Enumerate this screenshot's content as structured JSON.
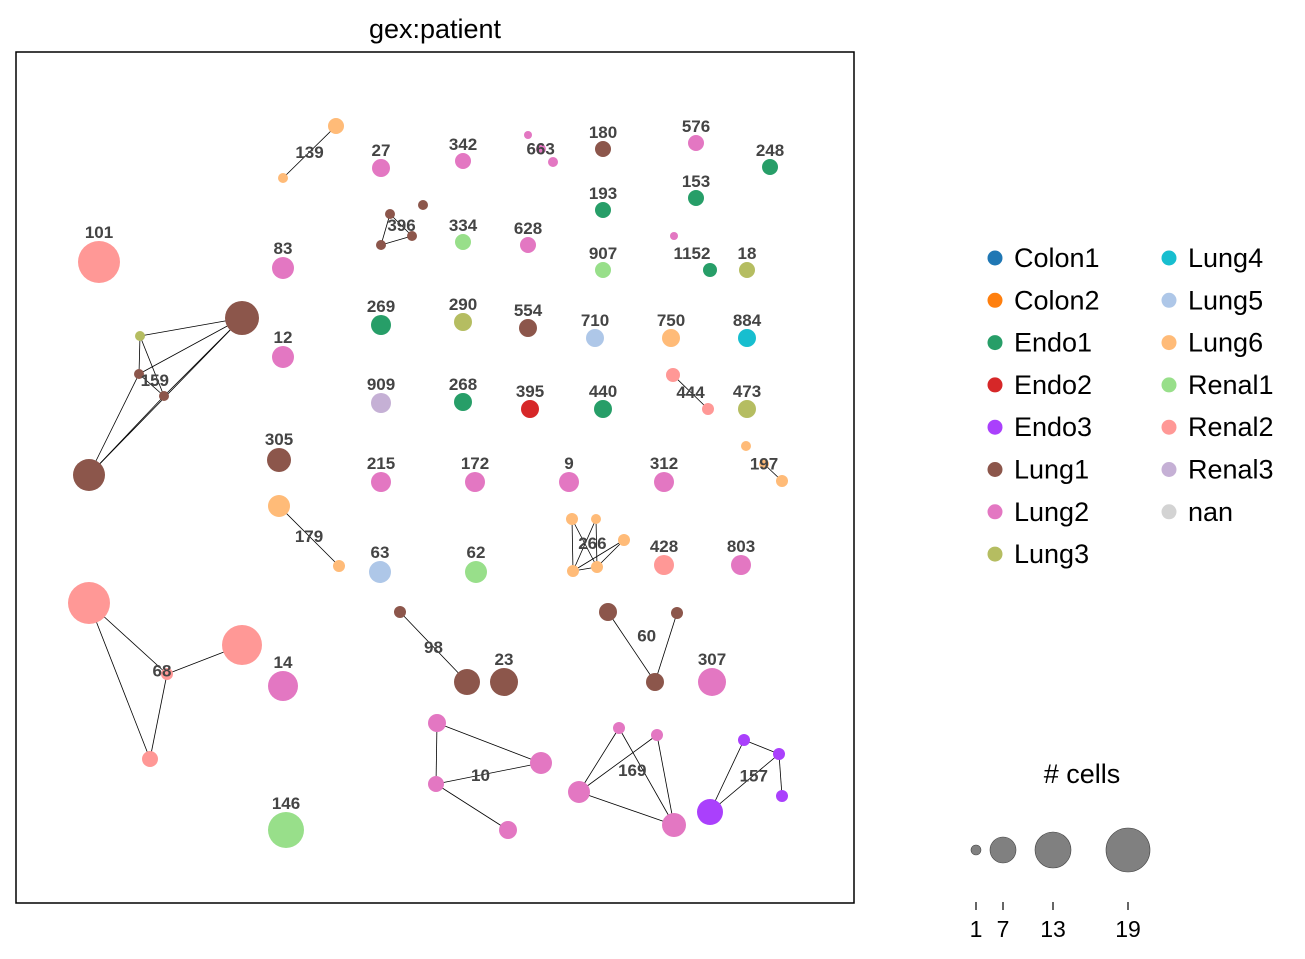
{
  "chart_data": {
    "type": "scatter",
    "title": "gex:patient",
    "categories": [
      "Colon1",
      "Colon2",
      "Endo1",
      "Endo2",
      "Endo3",
      "Lung1",
      "Lung2",
      "Lung3",
      "Lung4",
      "Lung5",
      "Lung6",
      "Renal1",
      "Renal2",
      "Renal3",
      "nan"
    ],
    "colors": {
      "Colon1": "#1f77b4",
      "Colon2": "#ff7f0e",
      "Endo1": "#279e68",
      "Endo2": "#d62728",
      "Endo3": "#aa40fc",
      "Lung1": "#8c564b",
      "Lung2": "#e377c2",
      "Lung3": "#b5bd61",
      "Lung4": "#17becf",
      "Lung5": "#aec7e8",
      "Lung6": "#ffbb78",
      "Renal1": "#98df8a",
      "Renal2": "#ff9896",
      "Renal3": "#c5b0d5",
      "nan": "#d3d3d3"
    },
    "size_legend": {
      "title": "# cells",
      "ticks": [
        1,
        7,
        13,
        19
      ]
    },
    "clonotypes": [
      {
        "label": "139",
        "nodes": [
          [
            336,
            126,
            8,
            "Lung6"
          ],
          [
            283,
            178,
            5,
            "Lung6"
          ]
        ],
        "edges": [
          [
            0,
            1
          ]
        ]
      },
      {
        "label": "27",
        "nodes": [
          [
            381,
            168,
            9,
            "Lung2"
          ]
        ],
        "edges": []
      },
      {
        "label": "342",
        "nodes": [
          [
            463,
            161,
            8,
            "Lung2"
          ]
        ],
        "edges": []
      },
      {
        "label": "663",
        "nodes": [
          [
            528,
            135,
            4,
            "Lung2"
          ],
          [
            541,
            149,
            5,
            "Lung2"
          ],
          [
            553,
            162,
            5,
            "Lung2"
          ]
        ],
        "edges": []
      },
      {
        "label": "180",
        "nodes": [
          [
            603,
            149,
            8,
            "Lung1"
          ]
        ],
        "edges": []
      },
      {
        "label": "576",
        "nodes": [
          [
            696,
            143,
            8,
            "Lung2"
          ]
        ],
        "edges": []
      },
      {
        "label": "248",
        "nodes": [
          [
            770,
            167,
            8,
            "Endo1"
          ]
        ],
        "edges": []
      },
      {
        "label": "193",
        "nodes": [
          [
            603,
            210,
            8,
            "Endo1"
          ]
        ],
        "edges": []
      },
      {
        "label": "153",
        "nodes": [
          [
            696,
            198,
            8,
            "Endo1"
          ]
        ],
        "edges": []
      },
      {
        "label": "396",
        "nodes": [
          [
            390,
            214,
            5,
            "Lung1"
          ],
          [
            423,
            205,
            5,
            "Lung1"
          ],
          [
            381,
            245,
            5,
            "Lung1"
          ],
          [
            412,
            236,
            5,
            "Lung1"
          ]
        ],
        "edges": [
          [
            0,
            2
          ],
          [
            0,
            3
          ],
          [
            2,
            3
          ]
        ]
      },
      {
        "label": "334",
        "nodes": [
          [
            463,
            242,
            8,
            "Renal1"
          ]
        ],
        "edges": []
      },
      {
        "label": "628",
        "nodes": [
          [
            528,
            245,
            8,
            "Lung2"
          ]
        ],
        "edges": []
      },
      {
        "label": "1152",
        "nodes": [
          [
            674,
            236,
            4,
            "Lung2"
          ],
          [
            710,
            270,
            7,
            "Endo1"
          ]
        ],
        "edges": []
      },
      {
        "label": "907",
        "nodes": [
          [
            603,
            270,
            8,
            "Renal1"
          ]
        ],
        "edges": []
      },
      {
        "label": "18",
        "nodes": [
          [
            747,
            270,
            8,
            "Lung3"
          ]
        ],
        "edges": []
      },
      {
        "label": "101",
        "nodes": [
          [
            99,
            262,
            21,
            "Renal2"
          ]
        ],
        "edges": []
      },
      {
        "label": "83",
        "nodes": [
          [
            283,
            268,
            11,
            "Lung2"
          ]
        ],
        "edges": []
      },
      {
        "label": "159",
        "nodes": [
          [
            242,
            318,
            17,
            "Lung1"
          ],
          [
            140,
            336,
            5,
            "Lung3"
          ],
          [
            139,
            374,
            5,
            "Lung1"
          ],
          [
            164,
            396,
            5,
            "Lung1"
          ],
          [
            89,
            475,
            16,
            "Lung1"
          ]
        ],
        "edges": [
          [
            1,
            0
          ],
          [
            1,
            2
          ],
          [
            1,
            3
          ],
          [
            2,
            3
          ],
          [
            0,
            2
          ],
          [
            0,
            3
          ],
          [
            0,
            4
          ],
          [
            2,
            4
          ],
          [
            3,
            4
          ]
        ]
      },
      {
        "label": "12",
        "nodes": [
          [
            283,
            357,
            11,
            "Lung2"
          ]
        ],
        "edges": []
      },
      {
        "label": "269",
        "nodes": [
          [
            381,
            325,
            10,
            "Endo1"
          ]
        ],
        "edges": []
      },
      {
        "label": "290",
        "nodes": [
          [
            463,
            322,
            9,
            "Lung3"
          ]
        ],
        "edges": []
      },
      {
        "label": "554",
        "nodes": [
          [
            528,
            328,
            9,
            "Lung1"
          ]
        ],
        "edges": []
      },
      {
        "label": "710",
        "nodes": [
          [
            595,
            338,
            9,
            "Lung5"
          ]
        ],
        "edges": []
      },
      {
        "label": "750",
        "nodes": [
          [
            671,
            338,
            9,
            "Lung6"
          ]
        ],
        "edges": []
      },
      {
        "label": "884",
        "nodes": [
          [
            747,
            338,
            9,
            "Lung4"
          ]
        ],
        "edges": []
      },
      {
        "label": "444",
        "nodes": [
          [
            673,
            375,
            7,
            "Renal2"
          ],
          [
            708,
            409,
            6,
            "Renal2"
          ]
        ],
        "edges": [
          [
            0,
            1
          ]
        ]
      },
      {
        "label": "909",
        "nodes": [
          [
            381,
            403,
            10,
            "Renal3"
          ]
        ],
        "edges": []
      },
      {
        "label": "268",
        "nodes": [
          [
            463,
            402,
            9,
            "Endo1"
          ]
        ],
        "edges": []
      },
      {
        "label": "395",
        "nodes": [
          [
            530,
            409,
            9,
            "Endo2"
          ]
        ],
        "edges": []
      },
      {
        "label": "440",
        "nodes": [
          [
            603,
            409,
            9,
            "Endo1"
          ]
        ],
        "edges": []
      },
      {
        "label": "473",
        "nodes": [
          [
            747,
            409,
            9,
            "Lung3"
          ]
        ],
        "edges": []
      },
      {
        "label": "305",
        "nodes": [
          [
            279,
            460,
            12,
            "Lung1"
          ]
        ],
        "edges": []
      },
      {
        "label": "197",
        "nodes": [
          [
            746,
            446,
            5,
            "Lung6"
          ],
          [
            764,
            464,
            5,
            "Lung6"
          ],
          [
            782,
            481,
            6,
            "Lung6"
          ]
        ],
        "edges": [
          [
            1,
            2
          ]
        ]
      },
      {
        "label": "215",
        "nodes": [
          [
            381,
            482,
            10,
            "Lung2"
          ]
        ],
        "edges": []
      },
      {
        "label": "172",
        "nodes": [
          [
            475,
            482,
            10,
            "Lung2"
          ]
        ],
        "edges": []
      },
      {
        "label": "9",
        "nodes": [
          [
            569,
            482,
            10,
            "Lung2"
          ]
        ],
        "edges": []
      },
      {
        "label": "312",
        "nodes": [
          [
            664,
            482,
            10,
            "Lung2"
          ]
        ],
        "edges": []
      },
      {
        "label": "179",
        "nodes": [
          [
            279,
            506,
            11,
            "Lung6"
          ],
          [
            339,
            566,
            6,
            "Lung6"
          ]
        ],
        "edges": [
          [
            0,
            1
          ]
        ]
      },
      {
        "label": "266",
        "nodes": [
          [
            572,
            519,
            6,
            "Lung6"
          ],
          [
            596,
            519,
            5,
            "Lung6"
          ],
          [
            624,
            540,
            6,
            "Lung6"
          ],
          [
            573,
            571,
            6,
            "Lung6"
          ],
          [
            597,
            567,
            6,
            "Lung6"
          ]
        ],
        "edges": [
          [
            0,
            3
          ],
          [
            0,
            4
          ],
          [
            1,
            3
          ],
          [
            1,
            4
          ],
          [
            2,
            3
          ],
          [
            2,
            4
          ],
          [
            3,
            4
          ]
        ]
      },
      {
        "label": "63",
        "nodes": [
          [
            380,
            572,
            11,
            "Lung5"
          ]
        ],
        "edges": []
      },
      {
        "label": "62",
        "nodes": [
          [
            476,
            572,
            11,
            "Renal1"
          ]
        ],
        "edges": []
      },
      {
        "label": "428",
        "nodes": [
          [
            664,
            565,
            10,
            "Renal2"
          ]
        ],
        "edges": []
      },
      {
        "label": "803",
        "nodes": [
          [
            741,
            565,
            10,
            "Lung2"
          ]
        ],
        "edges": []
      },
      {
        "label": "68",
        "nodes": [
          [
            89,
            603,
            21,
            "Renal2"
          ],
          [
            242,
            645,
            20,
            "Renal2"
          ],
          [
            167,
            674,
            6,
            "Renal2"
          ],
          [
            150,
            759,
            8,
            "Renal2"
          ]
        ],
        "edges": [
          [
            0,
            2
          ],
          [
            1,
            2
          ],
          [
            0,
            3
          ],
          [
            2,
            3
          ]
        ]
      },
      {
        "label": "98",
        "nodes": [
          [
            400,
            612,
            6,
            "Lung1"
          ],
          [
            467,
            682,
            13,
            "Lung1"
          ]
        ],
        "edges": [
          [
            0,
            1
          ]
        ]
      },
      {
        "label": "23",
        "nodes": [
          [
            504,
            682,
            14,
            "Lung1"
          ]
        ],
        "edges": []
      },
      {
        "label": "60",
        "nodes": [
          [
            608,
            612,
            9,
            "Lung1"
          ],
          [
            677,
            613,
            6,
            "Lung1"
          ],
          [
            655,
            682,
            9,
            "Lung1"
          ]
        ],
        "edges": [
          [
            0,
            2
          ],
          [
            1,
            2
          ]
        ]
      },
      {
        "label": "14",
        "nodes": [
          [
            283,
            686,
            15,
            "Lung2"
          ]
        ],
        "edges": []
      },
      {
        "label": "307",
        "nodes": [
          [
            712,
            682,
            14,
            "Lung2"
          ]
        ],
        "edges": []
      },
      {
        "label": "10",
        "nodes": [
          [
            437,
            723,
            9,
            "Lung2"
          ],
          [
            436,
            784,
            8,
            "Lung2"
          ],
          [
            541,
            763,
            11,
            "Lung2"
          ],
          [
            508,
            830,
            9,
            "Lung2"
          ]
        ],
        "edges": [
          [
            0,
            1
          ],
          [
            0,
            2
          ],
          [
            1,
            2
          ],
          [
            1,
            3
          ]
        ]
      },
      {
        "label": "169",
        "nodes": [
          [
            619,
            728,
            6,
            "Lung2"
          ],
          [
            657,
            735,
            6,
            "Lung2"
          ],
          [
            579,
            792,
            11,
            "Lung2"
          ],
          [
            674,
            825,
            12,
            "Lung2"
          ]
        ],
        "edges": [
          [
            0,
            2
          ],
          [
            0,
            3
          ],
          [
            1,
            2
          ],
          [
            1,
            3
          ],
          [
            2,
            3
          ]
        ]
      },
      {
        "label": "157",
        "nodes": [
          [
            744,
            740,
            6,
            "Endo3"
          ],
          [
            779,
            754,
            6,
            "Endo3"
          ],
          [
            782,
            796,
            6,
            "Endo3"
          ],
          [
            710,
            812,
            13,
            "Endo3"
          ]
        ],
        "edges": [
          [
            0,
            3
          ],
          [
            0,
            1
          ],
          [
            1,
            3
          ],
          [
            1,
            2
          ]
        ]
      },
      {
        "label": "146",
        "nodes": [
          [
            286,
            830,
            18,
            "Renal1"
          ]
        ],
        "edges": []
      }
    ]
  }
}
